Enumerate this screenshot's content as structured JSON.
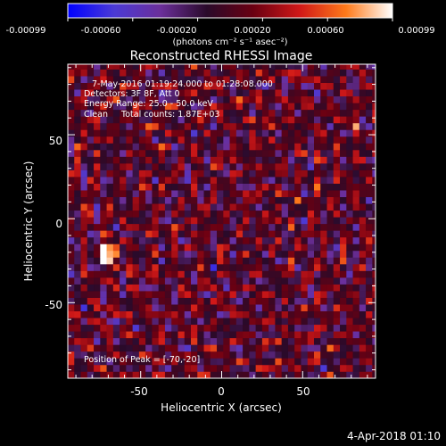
{
  "colorbar": {
    "ticks": [
      "-0.00099",
      "-0.00060",
      "-0.00020",
      "0.00020",
      "0.00060",
      "0.00099"
    ],
    "unit_label": "(photons cm⁻² s⁻¹ asec⁻²)",
    "vmin": -0.00099,
    "vmax": 0.00099,
    "stops": [
      "#0000ff",
      "#4b3ad6",
      "#6b2f9a",
      "#2a0a2a",
      "#6a0012",
      "#d01818",
      "#ff7a1a",
      "#ffffff"
    ]
  },
  "chart_data": {
    "type": "heatmap",
    "title": "Reconstructed RHESSI Image",
    "xlabel": "Heliocentric X (arcsec)",
    "ylabel": "Heliocentric Y (arcsec)",
    "xlim": [
      -95,
      95
    ],
    "ylim": [
      -95,
      92
    ],
    "xticks": [
      -50,
      0,
      50
    ],
    "yticks": [
      50,
      0,
      -50
    ],
    "grid": false,
    "info_lines": [
      "7-May-2016 01:19:24.000 to 01:28:08.000",
      "Detectors: 3F 8F, Att 0",
      "Energy Range: 25.0 - 50.0 keV",
      "Clean     Total counts: 1.87E+03"
    ],
    "peak_label": "Position of Peak = [-70,-20]",
    "peak_position": [
      -70,
      -20
    ],
    "pixel_size_arcsec": 4,
    "value_range": [
      -0.00099,
      0.00099
    ]
  },
  "footer": {
    "timestamp": "4-Apr-2018 01:10"
  }
}
